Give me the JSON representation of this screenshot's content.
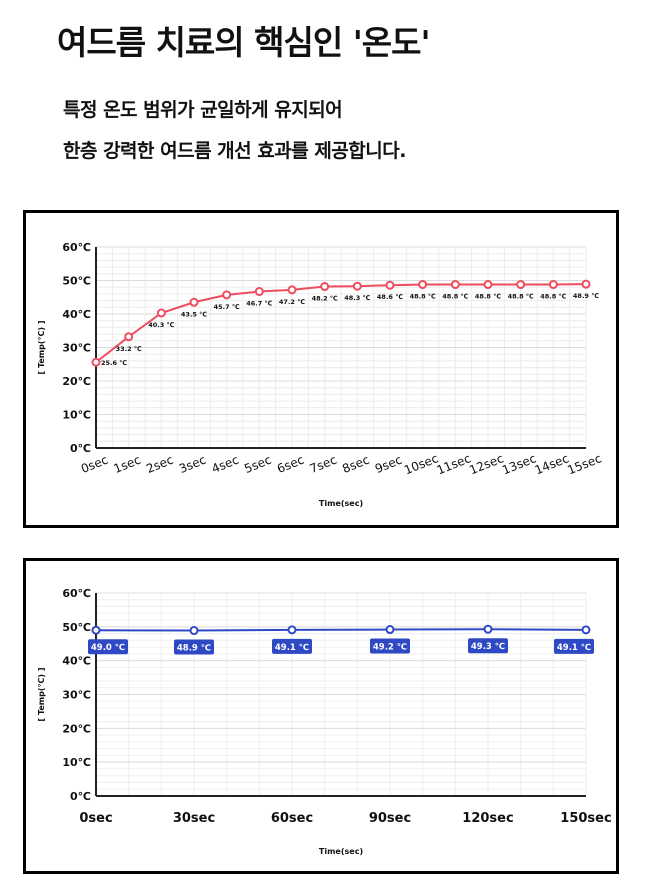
{
  "header": {
    "title": "여드름 치료의 핵심인 '온도'",
    "subtitle_line1": "특정 온도 범위가 균일하게 유지되어",
    "subtitle_line2": "한층 강력한 여드름 개선 효과를 제공합니다."
  },
  "chart_data": [
    {
      "type": "line",
      "xlabel": "Time(sec)",
      "ylabel": "[ Temp(°C) ]",
      "x": [
        "0sec",
        "1sec",
        "2sec",
        "3sec",
        "4sec",
        "5sec",
        "6sec",
        "7sec",
        "8sec",
        "9sec",
        "10sec",
        "11sec",
        "12sec",
        "13sec",
        "14sec",
        "15sec"
      ],
      "y_ticks": [
        "0℃",
        "10℃",
        "20℃",
        "30℃",
        "40℃",
        "50℃",
        "60℃"
      ],
      "ylim": [
        0,
        60
      ],
      "grid": true,
      "color": "#ee4d5f",
      "series": [
        {
          "values": [
            25.6,
            33.2,
            40.3,
            43.5,
            45.7,
            46.7,
            47.2,
            48.2,
            48.3,
            48.6,
            48.8,
            48.8,
            48.8,
            48.8,
            48.8,
            48.9
          ],
          "labels": [
            "25.6 ℃",
            "33.2 ℃",
            "40.3 ℃",
            "43.5 ℃",
            "45.7 ℃",
            "46.7 ℃",
            "47.2 ℃",
            "48.2 ℃",
            "48.3 ℃",
            "48.6 ℃",
            "48.8 ℃",
            "48.8 ℃",
            "48.8 ℃",
            "48.8 ℃",
            "48.8 ℃",
            "48.9 ℃"
          ]
        }
      ]
    },
    {
      "type": "line",
      "xlabel": "Time(sec)",
      "ylabel": "[ Temp(°C) ]",
      "x": [
        "0sec",
        "30sec",
        "60sec",
        "90sec",
        "120sec",
        "150sec"
      ],
      "y_ticks": [
        "0℃",
        "10℃",
        "20℃",
        "30℃",
        "40℃",
        "50℃",
        "60℃"
      ],
      "ylim": [
        0,
        60
      ],
      "grid": true,
      "color": "#2f49c5",
      "series": [
        {
          "values": [
            49.0,
            48.9,
            49.1,
            49.2,
            49.3,
            49.1
          ],
          "labels": [
            "49.0 ℃",
            "48.9 ℃",
            "49.1 ℃",
            "49.2 ℃",
            "49.3 ℃",
            "49.1 ℃"
          ]
        }
      ]
    }
  ]
}
